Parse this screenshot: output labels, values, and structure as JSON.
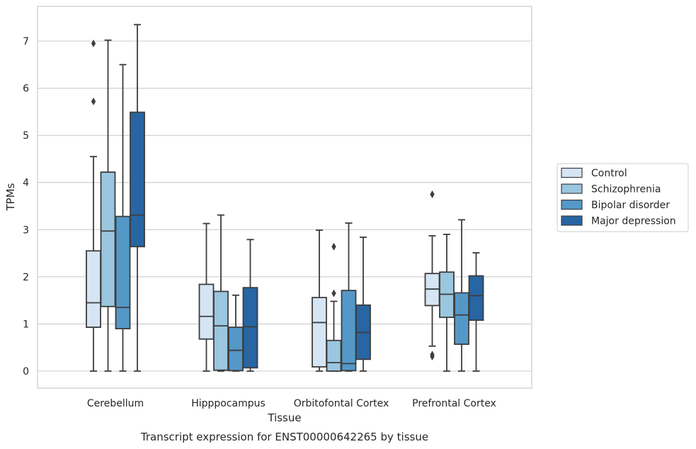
{
  "caption": "Transcript expression for ENST00000642265 by tissue",
  "chart_data": {
    "type": "box",
    "xlabel": "Tissue",
    "ylabel": "TPMs",
    "ylim": [
      -0.35,
      7.75
    ],
    "yticks": [
      0,
      1,
      2,
      3,
      4,
      5,
      6,
      7
    ],
    "grid": "horizontal",
    "legend_position": "right",
    "categories": [
      "Cerebellum",
      "Hipppocampus",
      "Orbitofontal Cortex",
      "Prefrontal Cortex"
    ],
    "series": [
      {
        "name": "Control",
        "color": "#d6e5f4",
        "boxes": [
          {
            "whislo": 0.0,
            "q1": 0.93,
            "med": 1.45,
            "q3": 2.55,
            "whishi": 4.55,
            "fliers": [
              5.72,
              6.95
            ]
          },
          {
            "whislo": 0.0,
            "q1": 0.68,
            "med": 1.16,
            "q3": 1.84,
            "whishi": 3.13,
            "fliers": []
          },
          {
            "whislo": 0.0,
            "q1": 0.09,
            "med": 1.03,
            "q3": 1.56,
            "whishi": 2.99,
            "fliers": []
          },
          {
            "whislo": 0.53,
            "q1": 1.39,
            "med": 1.74,
            "q3": 2.07,
            "whishi": 2.87,
            "fliers": [
              0.31,
              0.35,
              3.75
            ]
          }
        ]
      },
      {
        "name": "Schizophrenia",
        "color": "#9ac6df",
        "boxes": [
          {
            "whislo": 0.0,
            "q1": 1.37,
            "med": 2.97,
            "q3": 4.22,
            "whishi": 7.02,
            "fliers": []
          },
          {
            "whislo": 0.0,
            "q1": 0.02,
            "med": 0.96,
            "q3": 1.69,
            "whishi": 3.31,
            "fliers": []
          },
          {
            "whislo": 0.0,
            "q1": 0.0,
            "med": 0.18,
            "q3": 0.65,
            "whishi": 1.48,
            "fliers": [
              1.65,
              2.64
            ]
          },
          {
            "whislo": 0.0,
            "q1": 1.14,
            "med": 1.63,
            "q3": 2.1,
            "whishi": 2.9,
            "fliers": []
          }
        ]
      },
      {
        "name": "Bipolar disorder",
        "color": "#5498c8",
        "boxes": [
          {
            "whislo": 0.0,
            "q1": 0.9,
            "med": 1.35,
            "q3": 3.28,
            "whishi": 6.5,
            "fliers": []
          },
          {
            "whislo": 0.0,
            "q1": 0.01,
            "med": 0.44,
            "q3": 0.93,
            "whishi": 1.61,
            "fliers": []
          },
          {
            "whislo": 0.0,
            "q1": 0.01,
            "med": 0.16,
            "q3": 1.71,
            "whishi": 3.14,
            "fliers": []
          },
          {
            "whislo": 0.0,
            "q1": 0.57,
            "med": 1.19,
            "q3": 1.66,
            "whishi": 3.21,
            "fliers": []
          }
        ]
      },
      {
        "name": "Major depression",
        "color": "#2765a3",
        "boxes": [
          {
            "whislo": 0.0,
            "q1": 2.64,
            "med": 3.31,
            "q3": 5.49,
            "whishi": 7.35,
            "fliers": []
          },
          {
            "whislo": 0.0,
            "q1": 0.07,
            "med": 0.94,
            "q3": 1.77,
            "whishi": 2.79,
            "fliers": []
          },
          {
            "whislo": 0.0,
            "q1": 0.25,
            "med": 0.82,
            "q3": 1.4,
            "whishi": 2.84,
            "fliers": []
          },
          {
            "whislo": 0.0,
            "q1": 1.08,
            "med": 1.6,
            "q3": 2.02,
            "whishi": 2.51,
            "fliers": []
          }
        ]
      }
    ]
  }
}
